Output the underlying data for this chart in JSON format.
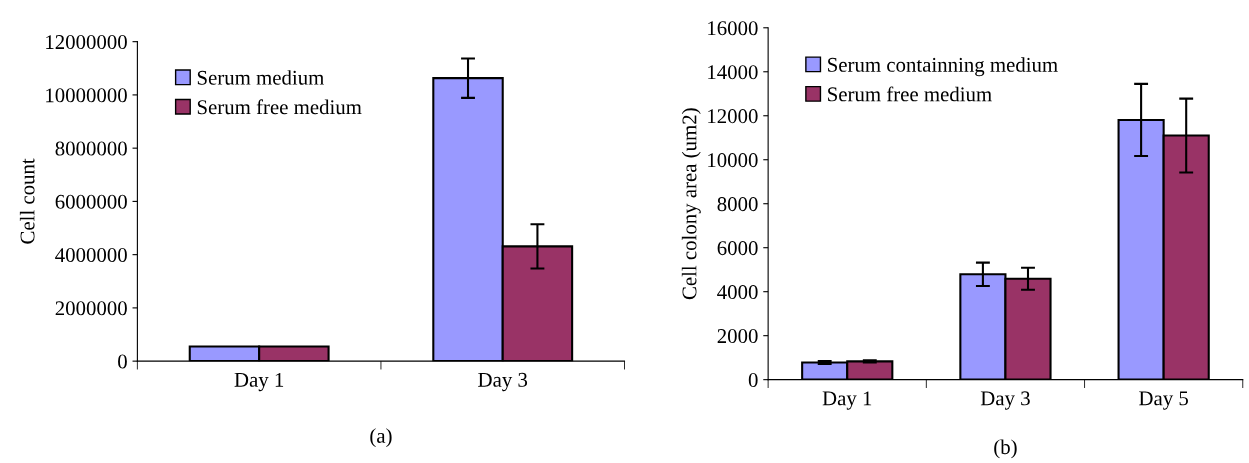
{
  "chart_data": [
    {
      "type": "bar",
      "ylabel": "Cell count",
      "categories": [
        "Day 1",
        "Day 3"
      ],
      "ylim": [
        0,
        12000000
      ],
      "yticks": [
        0,
        2000000,
        4000000,
        6000000,
        8000000,
        10000000,
        12000000
      ],
      "grid": false,
      "legend": "top left",
      "annotations": [
        "(a)"
      ],
      "series": [
        {
          "name": "Serum medium",
          "color": "#9999ff",
          "values": [
            550000,
            10630000
          ],
          "errors": [
            null,
            740000
          ]
        },
        {
          "name": "Serum free medium",
          "color": "#993366",
          "values": [
            550000,
            4310000
          ],
          "errors": [
            null,
            830000
          ]
        }
      ]
    },
    {
      "type": "bar",
      "ylabel": "Cell colony area (um2)",
      "categories": [
        "Day 1",
        "Day 3",
        "Day 5"
      ],
      "ylim": [
        0,
        16000
      ],
      "yticks": [
        0,
        2000,
        4000,
        6000,
        8000,
        10000,
        12000,
        14000,
        16000
      ],
      "grid": false,
      "legend": "top left",
      "annotations": [
        "(b)"
      ],
      "series": [
        {
          "name": "Serum containning medium",
          "color": "#9999ff",
          "values": [
            780,
            4790,
            11810
          ],
          "errors": [
            70,
            530,
            1640
          ]
        },
        {
          "name": "Serum free medium",
          "color": "#993366",
          "values": [
            830,
            4590,
            11100
          ],
          "errors": [
            50,
            500,
            1680
          ]
        }
      ]
    }
  ]
}
